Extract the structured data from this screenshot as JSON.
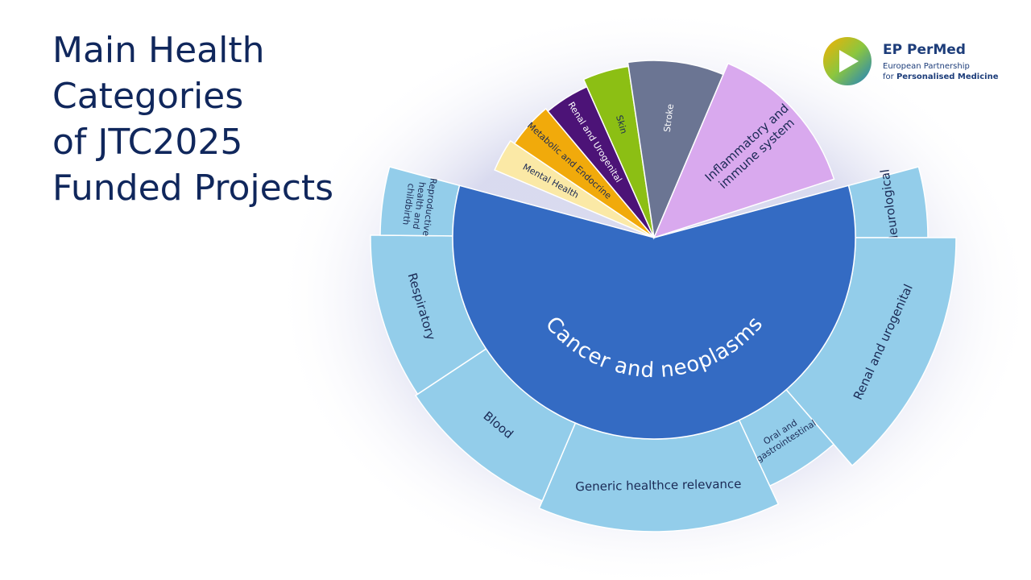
{
  "chart_data": {
    "type": "sunburst",
    "title": [
      "Main Health",
      "Categories",
      "of JTC2025",
      "Funded Projects"
    ],
    "logo": {
      "name": "EP PerMed",
      "line1": "European Partnership",
      "line2a": "for",
      "line2b": "Personalised Medicine"
    },
    "center": {
      "label": [
        "Cancer and neoplasms"
      ],
      "color": "#346bc3",
      "text_color": "#ffffff",
      "start": 345,
      "end": 555,
      "radius": 250
    },
    "fan": [
      {
        "label": [
          "Mental Health"
        ],
        "color": "#fbe9a6",
        "text_color": "#1b2a55",
        "start": 203,
        "end": 214,
        "radius": 215
      },
      {
        "label": [
          "Metabolic and Endocrine"
        ],
        "color": "#f1aa0b",
        "text_color": "#1b2a55",
        "start": 214,
        "end": 230,
        "radius": 209
      },
      {
        "label": [
          "Renal and Urogenital"
        ],
        "color": "#4c1377",
        "text_color": "#ffffff",
        "start": 230,
        "end": 246,
        "radius": 205
      },
      {
        "label": [
          "Skin"
        ],
        "color": "#8cbf14",
        "text_color": "#1b2a55",
        "start": 246,
        "end": 261.5,
        "radius": 215
      },
      {
        "label": [
          "Stroke"
        ],
        "color": "#6b7593",
        "text_color": "#ffffff",
        "start": 261.5,
        "end": 293,
        "radius": 220
      },
      {
        "label": [
          "Inflammatory and",
          "immune system"
        ],
        "color": "#d9a9ee",
        "text_color": "#1b2a55",
        "start": 293,
        "end": 342,
        "radius": 235
      }
    ],
    "ring": [
      {
        "label": [
          "Neurological"
        ],
        "color": "#93cdea",
        "text_color": "#1b2a55",
        "start": 345,
        "end": 360,
        "radius": 340
      },
      {
        "label": [
          "Renal and urogenital"
        ],
        "color": "#93cdea",
        "text_color": "#1b2a55",
        "start": 360,
        "end": 409,
        "radius": 375
      },
      {
        "label": [
          "Oral and",
          "gastrointestinal"
        ],
        "color": "#93cdea",
        "text_color": "#1b2a55",
        "start": 409,
        "end": 425,
        "radius": 340
      },
      {
        "label": [
          "Generic healthce relevance"
        ],
        "color": "#93cdea",
        "text_color": "#1b2a55",
        "start": 425,
        "end": 473,
        "radius": 365
      },
      {
        "label": [
          "Blood"
        ],
        "color": "#93cdea",
        "text_color": "#1b2a55",
        "start": 473,
        "end": 506.5,
        "radius": 355
      },
      {
        "label": [
          "Respiratory"
        ],
        "color": "#93cdea",
        "text_color": "#1b2a55",
        "start": 506.5,
        "end": 540.5,
        "radius": 352
      },
      {
        "label": [
          "Reproductive",
          "health and",
          "childbirth"
        ],
        "color": "#93cdea",
        "text_color": "#1b2a55",
        "start": 540.5,
        "end": 555,
        "radius": 340
      }
    ]
  }
}
